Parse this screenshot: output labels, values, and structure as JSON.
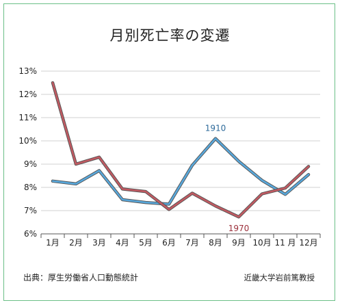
{
  "title": "月別死亡率の変遷",
  "source": "出典：厚生労働省人口動態統計",
  "credit": "近畿大学岩前篤教授",
  "chart_data": {
    "type": "line",
    "categories": [
      "1月",
      "2月",
      "3月",
      "4月",
      "5月",
      "6月",
      "7月",
      "8月",
      "9月",
      "10月",
      "11 月",
      "12月"
    ],
    "yticks": [
      "6%",
      "7%",
      "8%",
      "9%",
      "10%",
      "11%",
      "12%",
      "13%"
    ],
    "ylim": [
      6,
      13
    ],
    "grid": true,
    "series": [
      {
        "name": "1910",
        "color": "#58a8dc",
        "values": [
          8.27,
          8.15,
          8.72,
          7.47,
          7.35,
          7.28,
          8.95,
          10.1,
          9.12,
          8.3,
          7.7,
          8.55
        ]
      },
      {
        "name": "1970",
        "color": "#c25a62",
        "values": [
          12.5,
          9.0,
          9.3,
          7.93,
          7.82,
          7.05,
          7.75,
          7.2,
          6.73,
          7.72,
          7.97,
          8.9
        ]
      }
    ]
  }
}
